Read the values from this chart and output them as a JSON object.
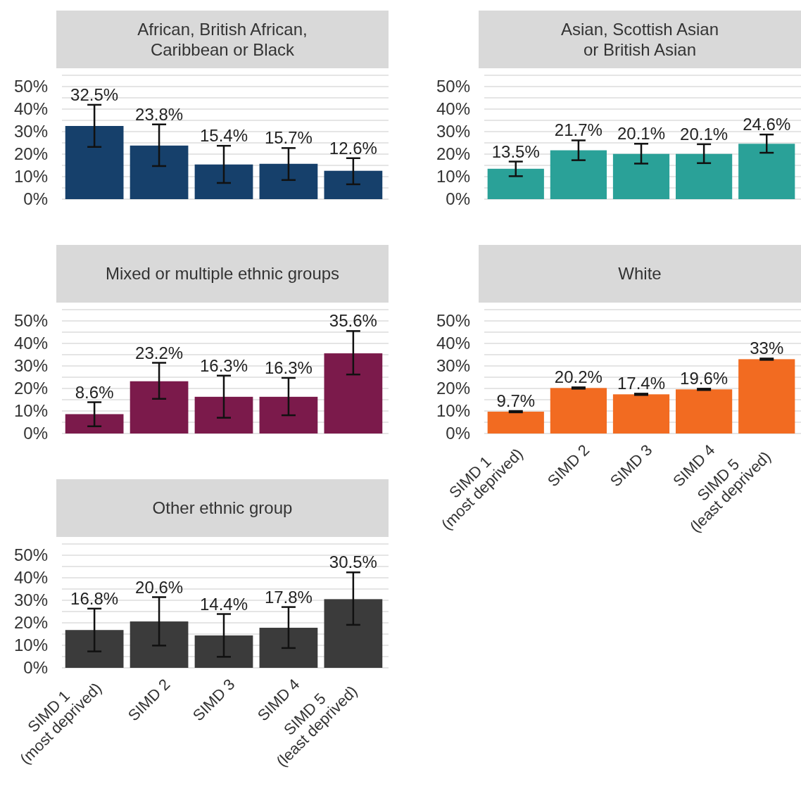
{
  "chart_data": [
    {
      "type": "bar",
      "title": "African, British African, Caribbean or Black",
      "categories": [
        null,
        null,
        null,
        null,
        null
      ],
      "values": [
        32.5,
        23.8,
        15.4,
        15.7,
        12.6
      ],
      "value_labels": [
        "32.5%",
        "23.8%",
        "15.4%",
        "15.7%",
        "12.6%"
      ],
      "errors": [
        [
          23.2,
          41.9
        ],
        [
          14.7,
          33.2
        ],
        [
          7.2,
          23.7
        ],
        [
          8.5,
          22.7
        ],
        [
          6.6,
          18.2
        ]
      ],
      "color": "#16406b",
      "ylim": [
        0,
        55
      ],
      "yticks": [
        {
          "value": 0,
          "label": "0%"
        },
        {
          "value": 5,
          "label": null
        },
        {
          "value": 10,
          "label": "10%"
        },
        {
          "value": 15,
          "label": null
        },
        {
          "value": 20,
          "label": "20%"
        },
        {
          "value": 25,
          "label": null
        },
        {
          "value": 30,
          "label": "30%"
        },
        {
          "value": 35,
          "label": null
        },
        {
          "value": 40,
          "label": "40%"
        },
        {
          "value": 45,
          "label": null
        },
        {
          "value": 50,
          "label": "50%"
        },
        {
          "value": 55,
          "label": null
        }
      ],
      "grid": true
    },
    {
      "type": "bar",
      "title": "Asian, Scottish Asian or British Asian",
      "categories": [
        null,
        null,
        null,
        null,
        null
      ],
      "values": [
        13.5,
        21.7,
        20.1,
        20.1,
        24.6
      ],
      "value_labels": [
        "13.5%",
        "21.7%",
        "20.1%",
        "20.1%",
        "24.6%"
      ],
      "errors": [
        [
          10.2,
          16.7
        ],
        [
          17.3,
          26.1
        ],
        [
          15.8,
          24.6
        ],
        [
          16.0,
          24.4
        ],
        [
          20.6,
          28.7
        ]
      ],
      "color": "#2aa198",
      "ylim": [
        0,
        55
      ],
      "yticks": [
        {
          "value": 0,
          "label": "0%"
        },
        {
          "value": 5,
          "label": null
        },
        {
          "value": 10,
          "label": "10%"
        },
        {
          "value": 15,
          "label": null
        },
        {
          "value": 20,
          "label": "20%"
        },
        {
          "value": 25,
          "label": null
        },
        {
          "value": 30,
          "label": "30%"
        },
        {
          "value": 35,
          "label": null
        },
        {
          "value": 40,
          "label": "40%"
        },
        {
          "value": 45,
          "label": null
        },
        {
          "value": 50,
          "label": "50%"
        },
        {
          "value": 55,
          "label": null
        }
      ],
      "grid": true
    },
    {
      "type": "bar",
      "title": "Mixed or multiple ethnic groups",
      "categories": [
        null,
        null,
        null,
        null,
        null
      ],
      "values": [
        8.6,
        23.2,
        16.3,
        16.3,
        35.6
      ],
      "value_labels": [
        "8.6%",
        "23.2%",
        "16.3%",
        "16.3%",
        "35.6%"
      ],
      "errors": [
        [
          3.2,
          13.9
        ],
        [
          15.4,
          31.4
        ],
        [
          7.0,
          25.7
        ],
        [
          8.1,
          24.7
        ],
        [
          26.2,
          45.5
        ]
      ],
      "color": "#7b1a4b",
      "ylim": [
        0,
        55
      ],
      "yticks": [
        {
          "value": 0,
          "label": "0%"
        },
        {
          "value": 5,
          "label": null
        },
        {
          "value": 10,
          "label": "10%"
        },
        {
          "value": 15,
          "label": null
        },
        {
          "value": 20,
          "label": "20%"
        },
        {
          "value": 25,
          "label": null
        },
        {
          "value": 30,
          "label": "30%"
        },
        {
          "value": 35,
          "label": null
        },
        {
          "value": 40,
          "label": "40%"
        },
        {
          "value": 45,
          "label": null
        },
        {
          "value": 50,
          "label": "50%"
        },
        {
          "value": 55,
          "label": null
        }
      ],
      "grid": true
    },
    {
      "type": "bar",
      "title": "White",
      "categories": [
        "SIMD 1\n(most deprived)",
        "SIMD 2",
        "SIMD 3",
        "SIMD 4",
        "SIMD 5\n(least deprived)"
      ],
      "values": [
        9.7,
        20.2,
        17.4,
        19.6,
        33
      ],
      "value_labels": [
        "9.7%",
        "20.2%",
        "17.4%",
        "19.6%",
        "33%"
      ],
      "errors": [
        0.3,
        0.3,
        0.3,
        0.3,
        0.3
      ],
      "color": "#f26b21",
      "ylim": [
        0,
        55
      ],
      "yticks": [
        {
          "value": 0,
          "label": "0%"
        },
        {
          "value": 5,
          "label": null
        },
        {
          "value": 10,
          "label": "10%"
        },
        {
          "value": 15,
          "label": null
        },
        {
          "value": 20,
          "label": "20%"
        },
        {
          "value": 25,
          "label": null
        },
        {
          "value": 30,
          "label": "30%"
        },
        {
          "value": 35,
          "label": null
        },
        {
          "value": 40,
          "label": "40%"
        },
        {
          "value": 45,
          "label": null
        },
        {
          "value": 50,
          "label": "50%"
        },
        {
          "value": 55,
          "label": null
        }
      ],
      "grid": true
    },
    {
      "type": "bar",
      "title": "Other ethnic group",
      "categories": [
        "SIMD 1\n(most deprived)",
        "SIMD 2",
        "SIMD 3",
        "SIMD 4",
        "SIMD 5\n(least deprived)"
      ],
      "values": [
        16.8,
        20.6,
        14.4,
        17.8,
        30.5
      ],
      "value_labels": [
        "16.8%",
        "20.6%",
        "14.4%",
        "17.8%",
        "30.5%"
      ],
      "errors": [
        [
          7.3,
          26.3
        ],
        [
          9.9,
          31.4
        ],
        [
          4.9,
          23.9
        ],
        [
          8.8,
          27.0
        ],
        [
          19.1,
          42.4
        ]
      ],
      "color": "#3b3b3b",
      "ylim": [
        0,
        55
      ],
      "yticks": [
        {
          "value": 0,
          "label": "0%"
        },
        {
          "value": 5,
          "label": null
        },
        {
          "value": 10,
          "label": "10%"
        },
        {
          "value": 15,
          "label": null
        },
        {
          "value": 20,
          "label": "20%"
        },
        {
          "value": 25,
          "label": null
        },
        {
          "value": 30,
          "label": "30%"
        },
        {
          "value": 35,
          "label": null
        },
        {
          "value": 40,
          "label": "40%"
        },
        {
          "value": 45,
          "label": null
        },
        {
          "value": 50,
          "label": "50%"
        },
        {
          "value": 55,
          "label": null
        }
      ],
      "grid": true
    }
  ]
}
